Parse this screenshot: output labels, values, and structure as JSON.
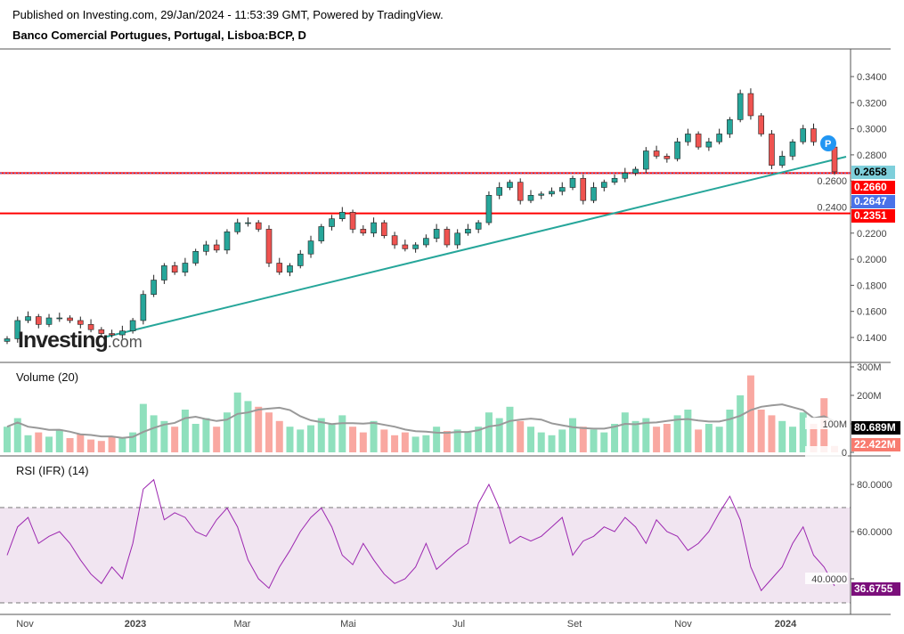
{
  "header": {
    "published": "Published on Investing.com, 29/Jan/2024 - 11:53:39 GMT, Powered by TradingView.",
    "symbol": "Banco Comercial Portugues, Portugal, Lisboa:BCP, D"
  },
  "logo": {
    "main": "Investing",
    "suffix": ".com"
  },
  "chart_data": {
    "type": "candlestick",
    "title": "Banco Comercial Portugues, Portugal, Lisboa:BCP, D",
    "price_axis": {
      "ticks": [
        "0.3400",
        "0.3200",
        "0.3000",
        "0.2800",
        "0.2600",
        "0.2400",
        "0.2200",
        "0.2000",
        "0.1800",
        "0.1600",
        "0.1400"
      ],
      "range": [
        0.128,
        0.36
      ]
    },
    "time_axis": {
      "ticks": [
        "Nov",
        "2023",
        "Mar",
        "Mai",
        "Jul",
        "Set",
        "Nov",
        "2024"
      ]
    },
    "closes": [
      0.139,
      0.153,
      0.156,
      0.15,
      0.155,
      0.155,
      0.153,
      0.15,
      0.146,
      0.143,
      0.142,
      0.145,
      0.153,
      0.173,
      0.184,
      0.195,
      0.19,
      0.197,
      0.206,
      0.211,
      0.207,
      0.221,
      0.228,
      0.228,
      0.223,
      0.197,
      0.19,
      0.195,
      0.204,
      0.214,
      0.225,
      0.231,
      0.236,
      0.223,
      0.22,
      0.228,
      0.218,
      0.211,
      0.208,
      0.211,
      0.216,
      0.223,
      0.211,
      0.22,
      0.223,
      0.228,
      0.249,
      0.255,
      0.259,
      0.245,
      0.249,
      0.25,
      0.252,
      0.255,
      0.262,
      0.245,
      0.255,
      0.259,
      0.262,
      0.266,
      0.269,
      0.283,
      0.279,
      0.277,
      0.29,
      0.296,
      0.286,
      0.29,
      0.296,
      0.307,
      0.327,
      0.31,
      0.296,
      0.272,
      0.279,
      0.29,
      0.3,
      0.29,
      0.286,
      0.267
    ],
    "horizontal_lines": [
      0.266,
      0.2351
    ],
    "price_labels": [
      {
        "value": "0.2658",
        "color": "#7ecfdb"
      },
      {
        "value": "0.2660",
        "color": "#ff0000"
      },
      {
        "value": "0.2647",
        "color": "#4a72e8"
      },
      {
        "value": "0.2351",
        "color": "#ff0000"
      }
    ],
    "trendline": {
      "from": [
        0.142,
        "Dec 2022"
      ],
      "to": [
        0.276,
        "Jan 2024"
      ]
    },
    "volume": {
      "label": "Volume (20)",
      "ticks": [
        "300M",
        "200M",
        "100M",
        "0"
      ],
      "ma_label": "80.689M",
      "last_label": "22.422M",
      "values": [
        90,
        120,
        60,
        70,
        55,
        80,
        50,
        65,
        45,
        40,
        55,
        50,
        70,
        170,
        130,
        110,
        90,
        150,
        100,
        120,
        90,
        140,
        210,
        180,
        160,
        140,
        110,
        90,
        80,
        95,
        120,
        100,
        130,
        90,
        70,
        110,
        80,
        60,
        70,
        55,
        60,
        90,
        75,
        80,
        70,
        90,
        140,
        120,
        160,
        110,
        90,
        70,
        60,
        80,
        120,
        90,
        80,
        70,
        100,
        140,
        110,
        120,
        90,
        100,
        130,
        150,
        80,
        100,
        90,
        150,
        200,
        270,
        150,
        130,
        110,
        90,
        140,
        100,
        190,
        22
      ]
    },
    "rsi": {
      "label": "RSI (IFR) (14)",
      "ticks": [
        "80.0000",
        "60.0000",
        "40.0000"
      ],
      "bands": [
        70,
        30
      ],
      "last_label": "36.6755",
      "values": [
        50,
        62,
        66,
        55,
        58,
        60,
        55,
        48,
        42,
        38,
        45,
        40,
        55,
        78,
        82,
        65,
        68,
        66,
        60,
        58,
        65,
        70,
        62,
        48,
        40,
        36,
        45,
        52,
        60,
        66,
        70,
        62,
        50,
        46,
        55,
        48,
        42,
        38,
        40,
        45,
        55,
        44,
        48,
        52,
        55,
        72,
        80,
        70,
        55,
        58,
        56,
        58,
        62,
        66,
        50,
        56,
        58,
        62,
        60,
        66,
        62,
        55,
        65,
        60,
        58,
        52,
        55,
        60,
        68,
        75,
        65,
        45,
        35,
        40,
        45,
        55,
        62,
        50,
        45,
        37
      ]
    }
  },
  "colors": {
    "up": "#26a69a",
    "down": "#ef5350",
    "trend": "#26a69a",
    "rsi": "#9c27b0"
  }
}
